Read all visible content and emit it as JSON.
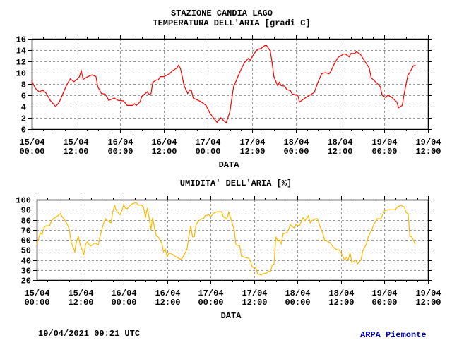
{
  "header": {
    "station": "STAZIONE CANDIA LAGO"
  },
  "footer": {
    "timestamp": "19/04/2021 09:21 UTC",
    "agency": "ARPA Piemonte",
    "agency_color": "#0000b0"
  },
  "chart_data": [
    {
      "type": "line",
      "title": "TEMPERATURA DELL'ARIA [gradi C]",
      "xlabel": "DATA",
      "ylabel": "",
      "ylim": [
        0,
        16
      ],
      "yticks": [
        "0",
        "2",
        "4",
        "6",
        "8",
        "10",
        "12",
        "14",
        "16"
      ],
      "xlim": [
        "15/04 00:00",
        "19/04 12:00"
      ],
      "xticks": [
        [
          "15/04",
          "00:00"
        ],
        [
          "15/04",
          "12:00"
        ],
        [
          "16/04",
          "00:00"
        ],
        [
          "16/04",
          "12:00"
        ],
        [
          "17/04",
          "00:00"
        ],
        [
          "17/04",
          "12:00"
        ],
        [
          "18/04",
          "00:00"
        ],
        [
          "18/04",
          "12:00"
        ],
        [
          "19/04",
          "00:00"
        ],
        [
          "19/04",
          "12:00"
        ]
      ],
      "grid": true,
      "color": "#ff0000",
      "points": [
        [
          "15/04 00:00",
          8.5
        ],
        [
          "15/04 01:00",
          7.2
        ],
        [
          "15/04 02:00",
          6.6
        ],
        [
          "15/04 03:00",
          6.9
        ],
        [
          "15/04 04:00",
          6.3
        ],
        [
          "15/04 05:00",
          5.1
        ],
        [
          "15/04 06:30",
          4.0
        ],
        [
          "15/04 07:30",
          4.8
        ],
        [
          "15/04 08:30",
          6.3
        ],
        [
          "15/04 09:30",
          7.8
        ],
        [
          "15/04 10:30",
          8.9
        ],
        [
          "15/04 11:30",
          8.4
        ],
        [
          "15/04 12:30",
          8.9
        ],
        [
          "15/04 13:00",
          9.3
        ],
        [
          "15/04 13:30",
          10.3
        ],
        [
          "15/04 14:00",
          8.8
        ],
        [
          "15/04 15:00",
          9.2
        ],
        [
          "15/04 16:00",
          9.5
        ],
        [
          "15/04 16:30",
          9.6
        ],
        [
          "15/04 17:30",
          9.3
        ],
        [
          "15/04 18:00",
          7.5
        ],
        [
          "15/04 19:00",
          6.3
        ],
        [
          "15/04 20:00",
          6.2
        ],
        [
          "15/04 21:00",
          5.1
        ],
        [
          "15/04 22:30",
          5.5
        ],
        [
          "15/04 23:30",
          5.1
        ],
        [
          "16/04 01:00",
          5.0
        ],
        [
          "16/04 02:00",
          4.2
        ],
        [
          "16/04 03:30",
          4.2
        ],
        [
          "16/04 04:00",
          4.5
        ],
        [
          "16/04 04:30",
          4.2
        ],
        [
          "16/04 05:30",
          4.8
        ],
        [
          "16/04 06:00",
          5.8
        ],
        [
          "16/04 07:30",
          6.6
        ],
        [
          "16/04 08:00",
          6.1
        ],
        [
          "16/04 08:30",
          6.3
        ],
        [
          "16/04 09:00",
          8.3
        ],
        [
          "16/04 10:00",
          8.7
        ],
        [
          "16/04 10:30",
          8.7
        ],
        [
          "16/04 11:00",
          9.3
        ],
        [
          "16/04 12:00",
          9.3
        ],
        [
          "16/04 13:30",
          9.8
        ],
        [
          "16/04 14:30",
          10.4
        ],
        [
          "16/04 15:30",
          10.8
        ],
        [
          "16/04 16:00",
          11.3
        ],
        [
          "16/04 16:30",
          10.8
        ],
        [
          "16/04 17:00",
          9.3
        ],
        [
          "16/04 17:30",
          7.7
        ],
        [
          "16/04 18:30",
          6.3
        ],
        [
          "16/04 19:00",
          6.9
        ],
        [
          "16/04 19:30",
          6.8
        ],
        [
          "16/04 20:00",
          5.5
        ],
        [
          "16/04 21:00",
          5.2
        ],
        [
          "16/04 22:00",
          4.9
        ],
        [
          "16/04 23:30",
          4.2
        ],
        [
          "17/04 00:30",
          2.9
        ],
        [
          "17/04 01:30",
          2.0
        ],
        [
          "17/04 02:30",
          1.2
        ],
        [
          "17/04 03:30",
          2.0
        ],
        [
          "17/04 04:00",
          1.7
        ],
        [
          "17/04 05:00",
          1.1
        ],
        [
          "17/04 06:00",
          3.1
        ],
        [
          "17/04 07:00",
          7.5
        ],
        [
          "17/04 08:00",
          9.0
        ],
        [
          "17/04 08:30",
          9.8
        ],
        [
          "17/04 09:30",
          11.2
        ],
        [
          "17/04 10:00",
          11.8
        ],
        [
          "17/04 11:00",
          12.5
        ],
        [
          "17/04 11:30",
          12.2
        ],
        [
          "17/04 12:30",
          13.3
        ],
        [
          "17/04 13:30",
          14.1
        ],
        [
          "17/04 14:30",
          14.3
        ],
        [
          "17/04 15:30",
          14.8
        ],
        [
          "17/04 16:00",
          14.8
        ],
        [
          "17/04 17:00",
          13.9
        ],
        [
          "17/04 17:30",
          11.8
        ],
        [
          "17/04 18:00",
          9.3
        ],
        [
          "17/04 19:00",
          7.7
        ],
        [
          "17/04 19:30",
          8.3
        ],
        [
          "17/04 20:00",
          7.7
        ],
        [
          "17/04 21:00",
          7.6
        ],
        [
          "17/04 21:30",
          7.0
        ],
        [
          "17/04 22:30",
          6.8
        ],
        [
          "17/04 23:00",
          6.2
        ],
        [
          "18/04 00:30",
          6.0
        ],
        [
          "18/04 01:00",
          4.8
        ],
        [
          "18/04 02:30",
          5.5
        ],
        [
          "18/04 04:00",
          6.1
        ],
        [
          "18/04 05:00",
          6.5
        ],
        [
          "18/04 06:00",
          8.3
        ],
        [
          "18/04 07:00",
          9.8
        ],
        [
          "18/04 08:00",
          10.0
        ],
        [
          "18/04 09:00",
          9.8
        ],
        [
          "18/04 09:30",
          10.2
        ],
        [
          "18/04 10:30",
          11.6
        ],
        [
          "18/04 11:30",
          12.7
        ],
        [
          "18/04 13:00",
          13.3
        ],
        [
          "18/04 13:30",
          13.3
        ],
        [
          "18/04 14:30",
          12.8
        ],
        [
          "18/04 15:00",
          13.4
        ],
        [
          "18/04 16:00",
          13.4
        ],
        [
          "18/04 16:30",
          13.7
        ],
        [
          "18/04 17:30",
          13.3
        ],
        [
          "18/04 19:00",
          11.8
        ],
        [
          "18/04 20:00",
          10.8
        ],
        [
          "18/04 20:30",
          9.1
        ],
        [
          "18/04 22:00",
          8.2
        ],
        [
          "18/04 23:00",
          7.5
        ],
        [
          "18/04 23:30",
          6.0
        ],
        [
          "19/04 00:30",
          5.6
        ],
        [
          "19/04 01:00",
          6.0
        ],
        [
          "19/04 02:00",
          5.7
        ],
        [
          "19/04 03:30",
          4.8
        ],
        [
          "19/04 04:00",
          3.8
        ],
        [
          "19/04 05:00",
          4.2
        ],
        [
          "19/04 05:30",
          6.2
        ],
        [
          "19/04 06:30",
          9.5
        ],
        [
          "19/04 07:00",
          10.0
        ],
        [
          "19/04 08:00",
          11.2
        ],
        [
          "19/04 08:30",
          11.3
        ]
      ]
    },
    {
      "type": "line",
      "title": "UMIDITA' DELL'ARIA [%]",
      "xlabel": "DATA",
      "ylabel": "",
      "ylim": [
        20,
        100
      ],
      "yticks": [
        "20",
        "30",
        "40",
        "50",
        "60",
        "70",
        "80",
        "90",
        "100"
      ],
      "xlim": [
        "15/04 00:00",
        "19/04 12:00"
      ],
      "xticks": [
        [
          "15/04",
          "00:00"
        ],
        [
          "15/04",
          "12:00"
        ],
        [
          "16/04",
          "00:00"
        ],
        [
          "16/04",
          "12:00"
        ],
        [
          "17/04",
          "00:00"
        ],
        [
          "17/04",
          "12:00"
        ],
        [
          "18/04",
          "00:00"
        ],
        [
          "18/04",
          "12:00"
        ],
        [
          "19/04",
          "00:00"
        ],
        [
          "19/04",
          "12:00"
        ]
      ],
      "grid": true,
      "color": "#ffb800",
      "points": [
        [
          "15/04 00:00",
          55
        ],
        [
          "15/04 01:00",
          67
        ],
        [
          "15/04 01:30",
          65.5
        ],
        [
          "15/04 02:00",
          72
        ],
        [
          "15/04 02:30",
          74
        ],
        [
          "15/04 03:30",
          74
        ],
        [
          "15/04 04:00",
          78
        ],
        [
          "15/04 04:30",
          81
        ],
        [
          "15/04 05:30",
          83
        ],
        [
          "15/04 06:30",
          86
        ],
        [
          "15/04 07:00",
          83
        ],
        [
          "15/04 07:30",
          81
        ],
        [
          "15/04 08:30",
          75
        ],
        [
          "15/04 09:00",
          70
        ],
        [
          "15/04 09:30",
          58
        ],
        [
          "15/04 10:30",
          48
        ],
        [
          "15/04 11:00",
          59
        ],
        [
          "15/04 11:30",
          63
        ],
        [
          "15/04 12:00",
          55
        ],
        [
          "15/04 13:00",
          45.5
        ],
        [
          "15/04 13:30",
          56
        ],
        [
          "15/04 14:00",
          58
        ],
        [
          "15/04 14:30",
          55
        ],
        [
          "15/04 15:00",
          54
        ],
        [
          "15/04 16:00",
          57
        ],
        [
          "15/04 17:00",
          55
        ],
        [
          "15/04 17:30",
          64
        ],
        [
          "15/04 18:30",
          77
        ],
        [
          "15/04 19:00",
          81
        ],
        [
          "15/04 19:30",
          79
        ],
        [
          "15/04 20:30",
          77
        ],
        [
          "15/04 21:00",
          88
        ],
        [
          "15/04 21:30",
          94
        ],
        [
          "15/04 22:00",
          89
        ],
        [
          "15/04 22:30",
          87
        ],
        [
          "15/04 23:00",
          85
        ],
        [
          "15/04 23:30",
          89
        ],
        [
          "16/04 00:00",
          95
        ],
        [
          "16/04 00:30",
          91.5
        ],
        [
          "16/04 01:00",
          91
        ],
        [
          "16/04 02:00",
          95
        ],
        [
          "16/04 02:30",
          96
        ],
        [
          "16/04 03:30",
          97
        ],
        [
          "16/04 04:00",
          94.5
        ],
        [
          "16/04 05:00",
          94.5
        ],
        [
          "16/04 05:30",
          92.5
        ],
        [
          "16/04 06:00",
          82
        ],
        [
          "16/04 06:30",
          91.5
        ],
        [
          "16/04 07:00",
          83
        ],
        [
          "16/04 07:30",
          70
        ],
        [
          "16/04 08:00",
          82
        ],
        [
          "16/04 08:30",
          72
        ],
        [
          "16/04 09:00",
          64
        ],
        [
          "16/04 09:30",
          63
        ],
        [
          "16/04 10:30",
          57
        ],
        [
          "16/04 11:00",
          48
        ],
        [
          "16/04 11:30",
          51
        ],
        [
          "16/04 12:00",
          43
        ],
        [
          "16/04 12:30",
          47
        ],
        [
          "16/04 13:30",
          45.5
        ],
        [
          "16/04 14:00",
          44
        ],
        [
          "16/04 15:00",
          42
        ],
        [
          "16/04 15:30",
          41
        ],
        [
          "16/04 16:00",
          41
        ],
        [
          "16/04 17:00",
          47
        ],
        [
          "16/04 17:30",
          51
        ],
        [
          "16/04 18:00",
          63
        ],
        [
          "16/04 18:30",
          74
        ],
        [
          "16/04 19:00",
          63
        ],
        [
          "16/04 19:30",
          63
        ],
        [
          "16/04 20:00",
          75
        ],
        [
          "16/04 20:30",
          78
        ],
        [
          "16/04 21:30",
          81
        ],
        [
          "16/04 22:00",
          81
        ],
        [
          "16/04 22:30",
          84
        ],
        [
          "16/04 23:30",
          85
        ],
        [
          "17/04 00:00",
          83
        ],
        [
          "17/04 01:00",
          87
        ],
        [
          "17/04 02:00",
          88
        ],
        [
          "17/04 03:00",
          88
        ],
        [
          "17/04 03:30",
          83
        ],
        [
          "17/04 04:30",
          81
        ],
        [
          "17/04 05:00",
          87.6
        ],
        [
          "17/04 05:30",
          82
        ],
        [
          "17/04 06:30",
          70
        ],
        [
          "17/04 07:00",
          55
        ],
        [
          "17/04 08:00",
          54
        ],
        [
          "17/04 08:30",
          44
        ],
        [
          "17/04 09:30",
          42.5
        ],
        [
          "17/04 10:30",
          41.6
        ],
        [
          "17/04 11:00",
          38.6
        ],
        [
          "17/04 11:30",
          33
        ],
        [
          "17/04 12:30",
          32
        ],
        [
          "17/04 13:00",
          26
        ],
        [
          "17/04 14:00",
          25
        ],
        [
          "17/04 14:30",
          26.4
        ],
        [
          "17/04 15:30",
          27
        ],
        [
          "17/04 16:00",
          29
        ],
        [
          "17/04 16:30",
          28.3
        ],
        [
          "17/04 17:00",
          35
        ],
        [
          "17/04 17:30",
          36
        ],
        [
          "17/04 18:00",
          63
        ],
        [
          "17/04 18:30",
          59
        ],
        [
          "17/04 19:00",
          59
        ],
        [
          "17/04 19:30",
          56
        ],
        [
          "17/04 20:00",
          66
        ],
        [
          "17/04 21:00",
          67
        ],
        [
          "17/04 21:30",
          70
        ],
        [
          "17/04 22:00",
          75
        ],
        [
          "17/04 23:00",
          72
        ],
        [
          "17/04 23:30",
          75
        ],
        [
          "18/04 00:30",
          74
        ],
        [
          "18/04 01:30",
          82
        ],
        [
          "18/04 02:00",
          79
        ],
        [
          "18/04 03:00",
          84
        ],
        [
          "18/04 03:30",
          77
        ],
        [
          "18/04 04:00",
          79
        ],
        [
          "18/04 05:00",
          81
        ],
        [
          "18/04 05:30",
          81
        ],
        [
          "18/04 06:30",
          70
        ],
        [
          "18/04 07:00",
          66
        ],
        [
          "18/04 07:30",
          59
        ],
        [
          "18/04 08:00",
          59
        ],
        [
          "18/04 09:00",
          57
        ],
        [
          "18/04 10:00",
          52
        ],
        [
          "18/04 11:00",
          50
        ],
        [
          "18/04 11:30",
          50
        ],
        [
          "18/04 12:00",
          47
        ],
        [
          "18/04 13:00",
          40
        ],
        [
          "18/04 13:30",
          42.5
        ],
        [
          "18/04 14:00",
          40
        ],
        [
          "18/04 14:30",
          47
        ],
        [
          "18/04 15:00",
          37.5
        ],
        [
          "18/04 16:00",
          40
        ],
        [
          "18/04 16:30",
          36
        ],
        [
          "18/04 17:30",
          40
        ],
        [
          "18/04 18:00",
          49
        ],
        [
          "18/04 19:00",
          56
        ],
        [
          "18/04 19:30",
          63
        ],
        [
          "18/04 20:30",
          70
        ],
        [
          "18/04 21:00",
          75
        ],
        [
          "18/04 22:00",
          81
        ],
        [
          "18/04 23:00",
          81
        ],
        [
          "19/04 00:00",
          89
        ],
        [
          "19/04 01:00",
          90
        ],
        [
          "19/04 03:00",
          90
        ],
        [
          "19/04 03:30",
          92.6
        ],
        [
          "19/04 04:30",
          94.3
        ],
        [
          "19/04 05:30",
          92.6
        ],
        [
          "19/04 06:00",
          87
        ],
        [
          "19/04 06:30",
          86
        ],
        [
          "19/04 07:00",
          63
        ],
        [
          "19/04 07:30",
          63
        ],
        [
          "19/04 08:30",
          56
        ]
      ]
    }
  ]
}
